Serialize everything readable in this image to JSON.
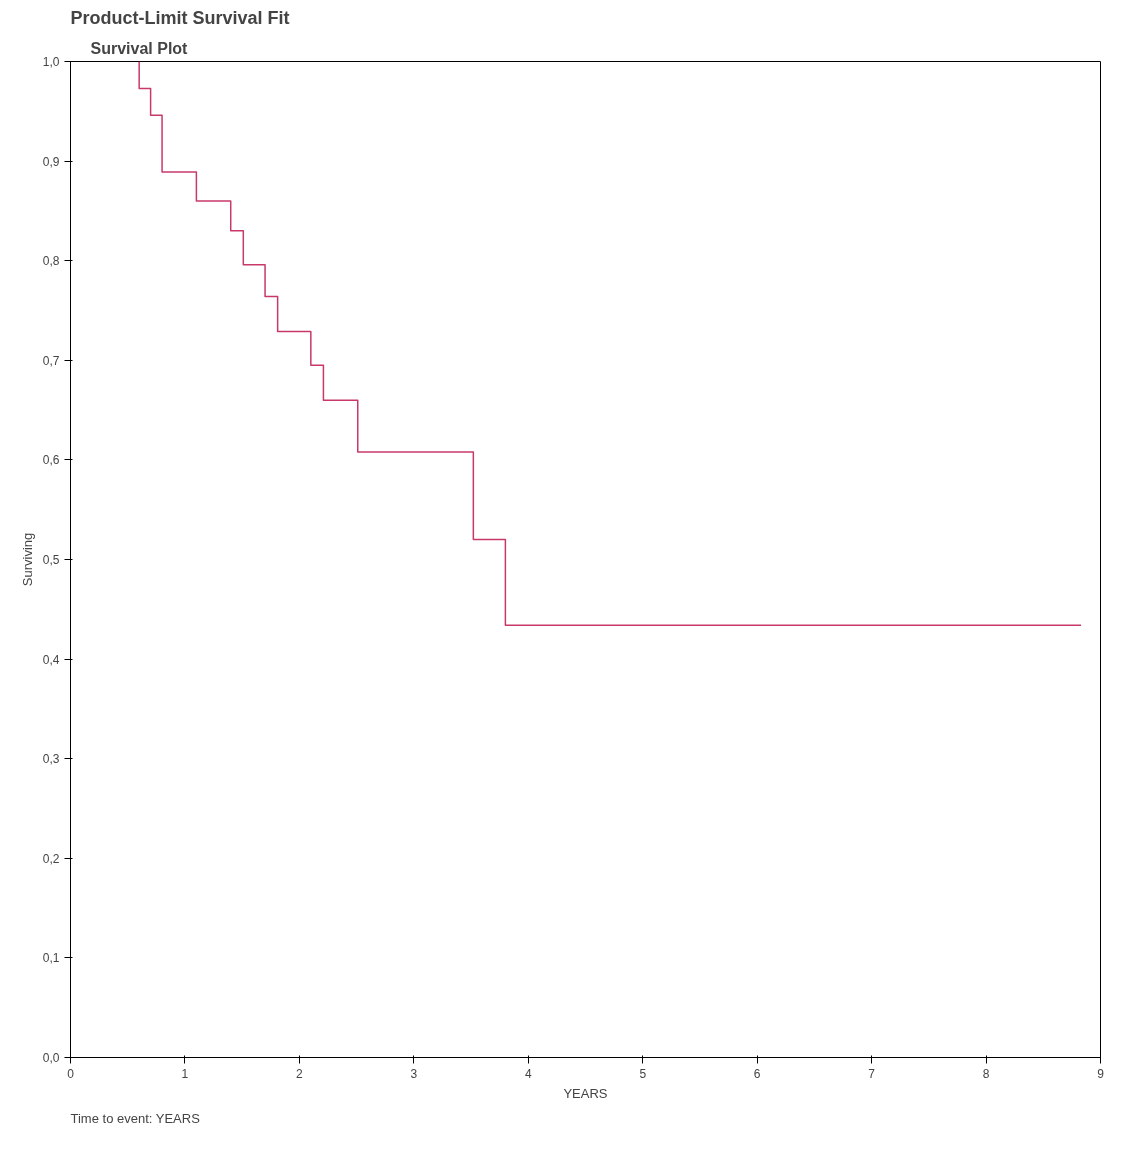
{
  "chart_data": {
    "type": "step",
    "title": "Product-Limit Survival Fit",
    "subtitle": "Survival Plot",
    "xlabel": "YEARS",
    "ylabel": "Surviving",
    "annotations": [
      "Time to event: YEARS"
    ],
    "x": [
      0.6,
      0.6,
      0.7,
      0.8,
      1.1,
      1.4,
      1.51,
      1.7,
      1.81,
      2.1,
      2.21,
      2.51,
      3.52,
      3.8,
      8.83
    ],
    "series": [
      {
        "color": "#c8386b",
        "values": [
          1.0,
          0.973,
          0.946,
          0.889,
          0.86,
          0.83,
          0.796,
          0.764,
          0.729,
          0.695,
          0.66,
          0.608,
          0.52,
          0.434,
          0.434
        ]
      }
    ],
    "xlim": [
      0,
      9
    ],
    "xticks": [
      0,
      1,
      2,
      3,
      4,
      5,
      6,
      7,
      8,
      9
    ],
    "ylim": [
      0,
      1
    ],
    "yticks": [
      {
        "value": 0,
        "label": "0,0"
      },
      {
        "value": 0.1,
        "label": "0,1"
      },
      {
        "value": 0.2,
        "label": "0,2"
      },
      {
        "value": 0.3,
        "label": "0,3"
      },
      {
        "value": 0.4,
        "label": "0,4"
      },
      {
        "value": 0.5,
        "label": "0,5"
      },
      {
        "value": 0.6,
        "label": "0,6"
      },
      {
        "value": 0.7,
        "label": "0,7"
      },
      {
        "value": 0.8,
        "label": "0,8"
      },
      {
        "value": 0.9,
        "label": "0,9"
      },
      {
        "value": 1,
        "label": "1,0"
      }
    ],
    "grid": false,
    "line_style": "solid"
  }
}
